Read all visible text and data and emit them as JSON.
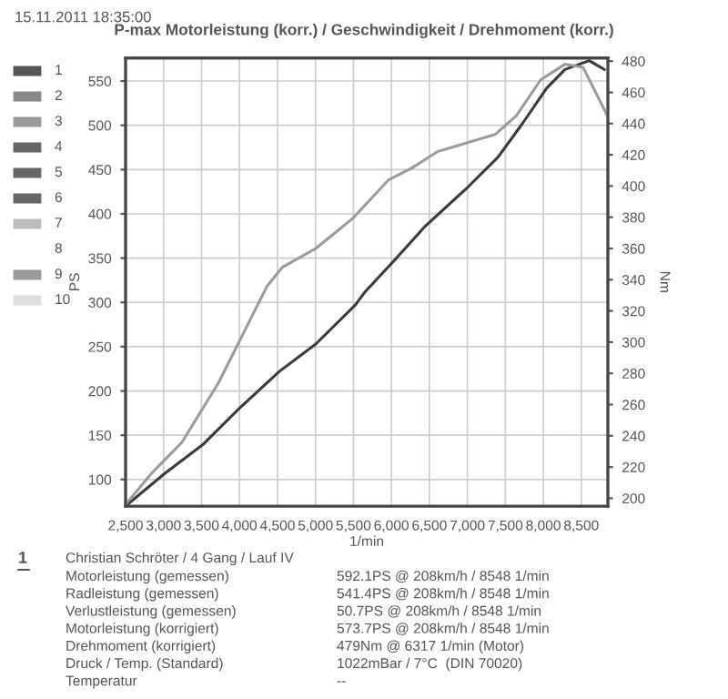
{
  "chart_data": {
    "type": "line",
    "title": "P-max Motorleistung (korr.) / Geschwindigkeit / Drehmoment (korr.)",
    "xlabel": "1/min",
    "ylabel": "PS",
    "y2label": "Nm",
    "series": [
      {
        "color": "#3a3a3a",
        "x": [
          2500,
          3004,
          3525,
          4005,
          4524,
          5004,
          5524,
          5644,
          6045,
          6444,
          7004,
          7404,
          7725,
          8044,
          8284,
          8604,
          8805
        ],
        "values": [
          70,
          106,
          140,
          181,
          222,
          253,
          297,
          311,
          348,
          386,
          430,
          464,
          502,
          542,
          563,
          573,
          563
        ]
      },
      {
        "color": "#9a9a9a",
        "axis": "y2",
        "x": [
          2500,
          2843,
          3244,
          3724,
          4044,
          4365,
          4564,
          5004,
          5484,
          5964,
          6285,
          6604,
          7084,
          7365,
          7645,
          7965,
          8284,
          8524,
          8844
        ],
        "values": [
          196,
          216,
          236,
          274,
          305,
          336,
          348,
          360,
          379,
          404,
          412,
          422,
          429,
          433,
          445,
          468,
          478,
          476,
          445
        ]
      }
    ],
    "xlim": [
      2500,
      8850
    ],
    "xticks": [
      {
        "value": 2500,
        "label": "2,500"
      },
      {
        "value": 3000,
        "label": "3,000"
      },
      {
        "value": 3500,
        "label": "3,500"
      },
      {
        "value": 4000,
        "label": "4,000"
      },
      {
        "value": 4500,
        "label": "4,500"
      },
      {
        "value": 5000,
        "label": "5,000"
      },
      {
        "value": 5500,
        "label": "5,500"
      },
      {
        "value": 6000,
        "label": "6,000"
      },
      {
        "value": 6500,
        "label": "6,500"
      },
      {
        "value": 7000,
        "label": "7,000"
      },
      {
        "value": 7500,
        "label": "7,500"
      },
      {
        "value": 8000,
        "label": "8,000"
      },
      {
        "value": 8500,
        "label": "8,500"
      }
    ],
    "ylim": [
      70,
      576
    ],
    "yticks": [
      100,
      150,
      200,
      250,
      300,
      350,
      400,
      450,
      500,
      550
    ],
    "y2lim": [
      195,
      482
    ],
    "y2ticks": [
      200,
      220,
      240,
      260,
      280,
      300,
      320,
      340,
      360,
      380,
      400,
      420,
      440,
      460,
      480
    ],
    "grid": true,
    "legend": false,
    "annotations": [
      "15.11.2011 18:35:00",
      "1",
      "Christian Schröter / 4 Gang / Lauf IV",
      "Motorleistung (gemessen)",
      "592.1PS @ 208km/h / 8548 1/min",
      "Radleistung (gemessen)",
      "541.4PS @ 208km/h / 8548 1/min",
      "Verlustleistung (gemessen)",
      "50.7PS @ 208km/h / 8548 1/min",
      "Motorleistung (korrigiert)",
      "573.7PS @ 208km/h / 8548 1/min",
      "Drehmoment (korrigiert)",
      "479Nm @ 6317 1/min (Motor)",
      "Druck / Temp. (Standard)",
      "1022mBar / 7°C  (DIN 70020)",
      "Temperatur",
      "--",
      "1",
      "2",
      "3",
      "4",
      "5",
      "6",
      "7",
      "8",
      "9",
      "10"
    ]
  }
}
